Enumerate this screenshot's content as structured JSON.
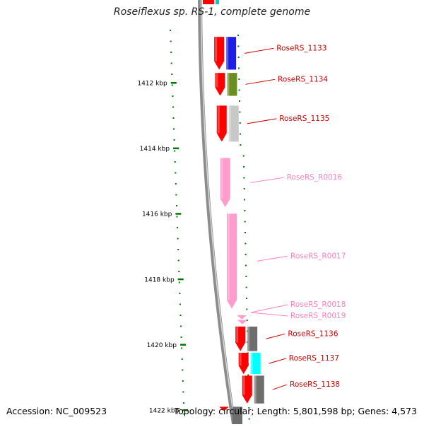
{
  "title": "Roseiflexus sp. RS-1, complete genome",
  "footer": {
    "accession": "Accession: NC_009523",
    "topology": "Topology: circular; Length: 5,801,598 bp; Genes: 4,573"
  },
  "colors": {
    "cds": "#ff0000",
    "rna": "#ff9ccc",
    "backbone": "#888888",
    "tick": "#007700",
    "label_cds": "#cc0000",
    "label_rna": "#ff80bb",
    "cog": [
      "#1e1ee6",
      "#6b8e23",
      "#c8c8c8",
      "#00ffff",
      "#6e6e6e"
    ]
  },
  "scale": {
    "unit": "kbp",
    "ticks": [
      {
        "label": "1412 kbp",
        "value": 1412
      },
      {
        "label": "1414 kbp",
        "value": 1414
      },
      {
        "label": "1416 kbp",
        "value": 1416
      },
      {
        "label": "1418 kbp",
        "value": 1418
      },
      {
        "label": "1420 kbp",
        "value": 1420
      },
      {
        "label": "1422 kbp",
        "value": 1422
      }
    ]
  },
  "features": [
    {
      "label": "RoseRS_1133",
      "type": "CDS",
      "start": 1410.6,
      "end": 1411.6,
      "cog": "blue"
    },
    {
      "label": "RoseRS_1134",
      "type": "CDS",
      "start": 1411.7,
      "end": 1412.4,
      "cog": "green"
    },
    {
      "label": "RoseRS_1135",
      "type": "CDS",
      "start": 1412.7,
      "end": 1413.8,
      "cog": "grey"
    },
    {
      "label": "RoseRS_R0016",
      "type": "rRNA",
      "start": 1414.3,
      "end": 1415.8
    },
    {
      "label": "RoseRS_R0017",
      "type": "rRNA",
      "start": 1416.0,
      "end": 1418.9
    },
    {
      "label": "RoseRS_R0018",
      "type": "tRNA",
      "start": 1419.1,
      "end": 1419.2
    },
    {
      "label": "RoseRS_R0019",
      "type": "tRNA",
      "start": 1419.25,
      "end": 1419.35
    },
    {
      "label": "RoseRS_1136",
      "type": "CDS",
      "start": 1419.45,
      "end": 1420.2,
      "cog": "darkgrey"
    },
    {
      "label": "RoseRS_1137",
      "type": "CDS",
      "start": 1420.25,
      "end": 1420.9,
      "cog": "cyan"
    },
    {
      "label": "RoseRS_1138",
      "type": "CDS",
      "start": 1420.95,
      "end": 1421.8,
      "cog": "darkgrey"
    }
  ]
}
